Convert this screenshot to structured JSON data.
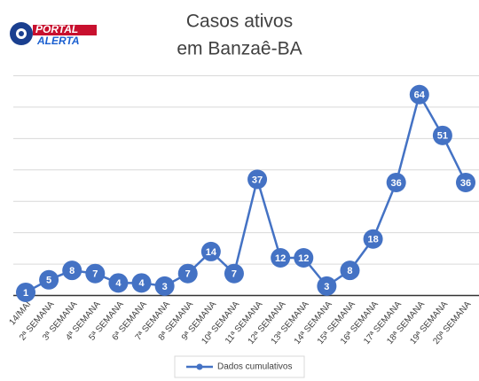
{
  "logo": {
    "line1": "PORTAL",
    "line2": "ALERTA"
  },
  "chart_data": {
    "type": "line",
    "title": [
      "Casos ativos",
      "em Banzaê-BA"
    ],
    "categories": [
      "14/MAI",
      "2ª SEMANA",
      "3ª SEMANA",
      "4ª SEMANA",
      "5ª SEMANA",
      "6ª SEMANA",
      "7ª SEMANA",
      "8ª SEMANA",
      "9ª SEMANA",
      "10ª SEMANA",
      "11ª SEMANA",
      "12ª SEMANA",
      "13ª SEMANA",
      "14ª SEMANA",
      "15ª SEMANA",
      "16ª SEMANA",
      "17ª SEMANA",
      "18ª SEMANA",
      "19ª SEMANA",
      "20ª SEMANA"
    ],
    "series": [
      {
        "name": "Dados cumulativos",
        "color": "#4472c4",
        "values": [
          1,
          5,
          8,
          7,
          4,
          4,
          3,
          7,
          14,
          7,
          37,
          12,
          12,
          3,
          8,
          18,
          36,
          64,
          51,
          36
        ]
      }
    ],
    "ylim": [
      0,
      70
    ],
    "yticks": [
      0,
      10,
      20,
      30,
      40,
      50,
      60,
      70
    ],
    "grid": true,
    "legend": "bottom"
  }
}
